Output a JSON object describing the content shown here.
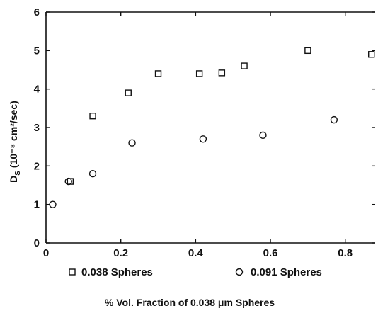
{
  "chart_data": {
    "type": "scatter",
    "xlabel": "% Vol. Fraction of 0.038 μm Spheres",
    "ylabel": "D",
    "ylabel_sub": "S",
    "ylabel_rest": " (10⁻⁸ cm²/sec)",
    "xlim": [
      0,
      0.88
    ],
    "ylim": [
      0,
      6
    ],
    "x_ticks": [
      0,
      0.2,
      0.4,
      0.6,
      0.8
    ],
    "x_tick_labels": [
      "0",
      "0.2",
      "0.4",
      "0.6",
      "0.8"
    ],
    "y_ticks": [
      0,
      1,
      2,
      3,
      4,
      5,
      6
    ],
    "y_tick_labels": [
      "0",
      "1",
      "2",
      "3",
      "4",
      "5",
      "6"
    ],
    "grid": false,
    "legend_position": "bottom",
    "series": [
      {
        "name": "0.038 Spheres",
        "marker": "square",
        "points": [
          {
            "x": 0.065,
            "y": 1.6
          },
          {
            "x": 0.125,
            "y": 3.3
          },
          {
            "x": 0.22,
            "y": 3.9
          },
          {
            "x": 0.3,
            "y": 4.4
          },
          {
            "x": 0.41,
            "y": 4.4
          },
          {
            "x": 0.47,
            "y": 4.42
          },
          {
            "x": 0.53,
            "y": 4.6
          },
          {
            "x": 0.7,
            "y": 5.0
          },
          {
            "x": 0.87,
            "y": 4.9
          }
        ]
      },
      {
        "name": "0.091 Spheres",
        "marker": "circle",
        "points": [
          {
            "x": 0.018,
            "y": 1.0
          },
          {
            "x": 0.06,
            "y": 1.6
          },
          {
            "x": 0.125,
            "y": 1.8
          },
          {
            "x": 0.23,
            "y": 2.6
          },
          {
            "x": 0.42,
            "y": 2.7
          },
          {
            "x": 0.58,
            "y": 2.8
          },
          {
            "x": 0.77,
            "y": 3.2
          }
        ]
      }
    ]
  }
}
